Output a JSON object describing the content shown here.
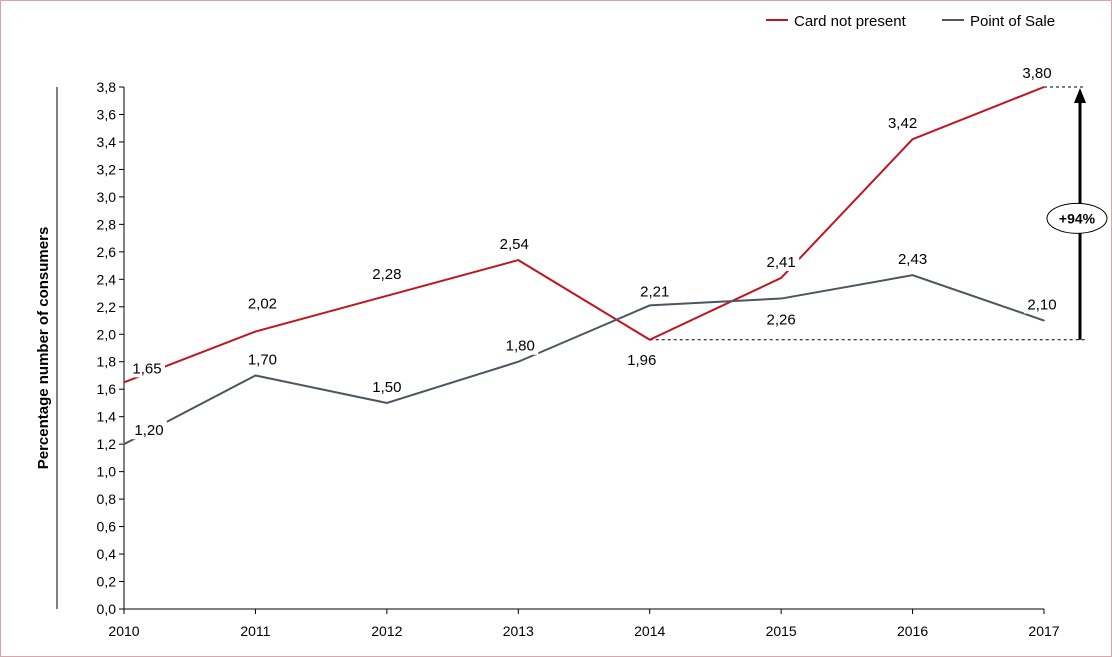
{
  "chart_data": {
    "type": "line",
    "categories": [
      "2010",
      "2011",
      "2012",
      "2013",
      "2014",
      "2015",
      "2016",
      "2017"
    ],
    "series": [
      {
        "name": "Card not present",
        "color": "#c0151f",
        "values": [
          1.65,
          2.02,
          2.28,
          2.54,
          1.96,
          2.41,
          3.42,
          3.8
        ],
        "labels": [
          "1,65",
          "2,02",
          "2,28",
          "2,54",
          "1,96",
          "2,41",
          "3,42",
          "3,80"
        ]
      },
      {
        "name": "Point of Sale",
        "color": "#4b5660",
        "values": [
          1.2,
          1.7,
          1.5,
          1.8,
          2.21,
          2.26,
          2.43,
          2.1
        ],
        "labels": [
          "1,20",
          "1,70",
          "1,50",
          "1,80",
          "2,21",
          "2,26",
          "2,43",
          "2,10"
        ]
      }
    ],
    "ylabel": "Percentage number of consumers",
    "xlabel": "",
    "ylim": [
      0,
      3.8
    ],
    "yticks": [
      "0,0",
      "0,2",
      "0,4",
      "0,6",
      "0,8",
      "1,0",
      "1,2",
      "1,4",
      "1,6",
      "1,8",
      "2,0",
      "2,2",
      "2,4",
      "2,6",
      "2,8",
      "3,0",
      "3,2",
      "3,4",
      "3,6",
      "3,8"
    ],
    "ytick_values": [
      0,
      0.2,
      0.4,
      0.6,
      0.8,
      1.0,
      1.2,
      1.4,
      1.6,
      1.8,
      2.0,
      2.2,
      2.4,
      2.6,
      2.8,
      3.0,
      3.2,
      3.4,
      3.6,
      3.8
    ],
    "legend_position": "top-right",
    "annotation": {
      "text": "+94%",
      "from_value": 1.96,
      "to_value": 3.8
    }
  }
}
